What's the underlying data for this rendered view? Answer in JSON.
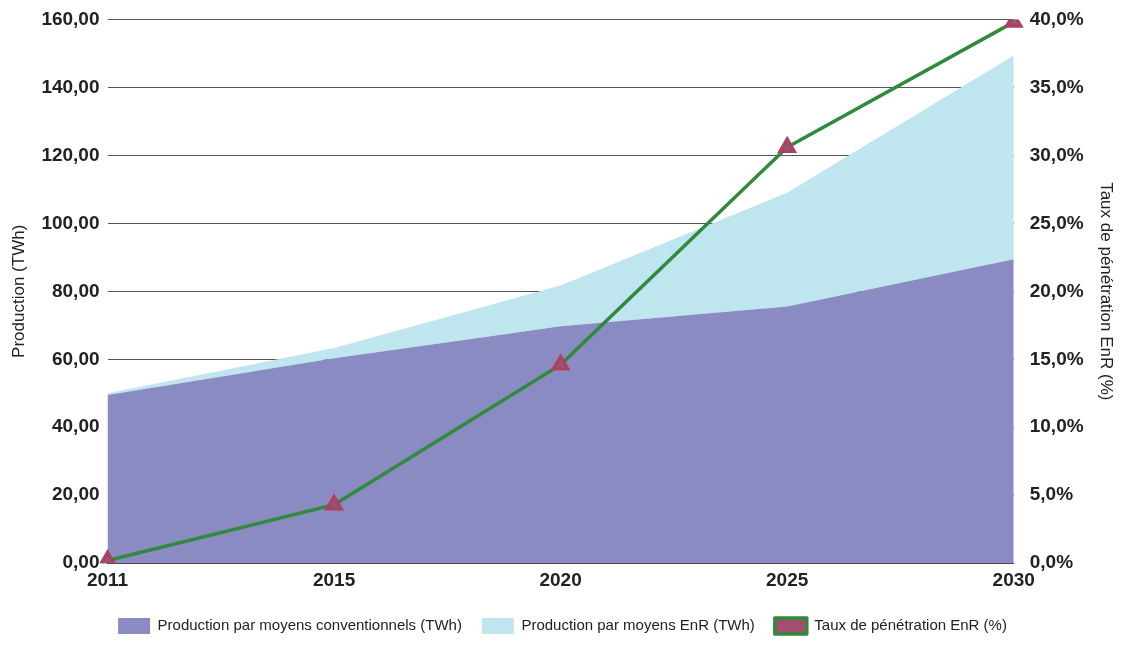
{
  "chart_data": {
    "type": "area",
    "stacked": true,
    "categories": [
      "2011",
      "2015",
      "2020",
      "2025",
      "2030"
    ],
    "series": [
      {
        "name": "Production par moyens conventionnels (TWh)",
        "color": "#8a8bc3",
        "values": [
          49.5,
          60.3,
          69.7,
          75.5,
          89.4
        ]
      },
      {
        "name": "Production par moyens EnR (TWh)",
        "color": "#bfe5ee",
        "values": [
          0.5,
          3,
          12,
          33.5,
          60
        ]
      },
      {
        "name": "Taux de pénétration EnR (%)",
        "color": "#2f8a3c",
        "type": "line",
        "axis": "y2",
        "marker": "triangle",
        "values": [
          0.2,
          4.3,
          14.6,
          30.6,
          39.8
        ]
      }
    ],
    "ylabel": "Production (TWh)",
    "y2label": "Taux de pénétration EnR (%)",
    "ylim": [
      0,
      160
    ],
    "yticks": [
      {
        "value": 0,
        "label": "0,00"
      },
      {
        "value": 20,
        "label": "20,00"
      },
      {
        "value": 40,
        "label": "40,00"
      },
      {
        "value": 60,
        "label": "60,00"
      },
      {
        "value": 80,
        "label": "80,00"
      },
      {
        "value": 100,
        "label": "100,00"
      },
      {
        "value": 120,
        "label": "120,00"
      },
      {
        "value": 140,
        "label": "140,00"
      },
      {
        "value": 160,
        "label": "160,00"
      }
    ],
    "y2lim": [
      0,
      40
    ],
    "y2ticks": [
      {
        "value": 0,
        "label": "0,0%"
      },
      {
        "value": 5,
        "label": "5,0%"
      },
      {
        "value": 10,
        "label": "10,0%"
      },
      {
        "value": 15,
        "label": "15,0%"
      },
      {
        "value": 20,
        "label": "20,0%"
      },
      {
        "value": 25,
        "label": "25,0%"
      },
      {
        "value": 30,
        "label": "30,0%"
      },
      {
        "value": 35,
        "label": "35,0%"
      },
      {
        "value": 40,
        "label": "40,0%"
      }
    ],
    "grid": "y",
    "legend": "bottom"
  }
}
